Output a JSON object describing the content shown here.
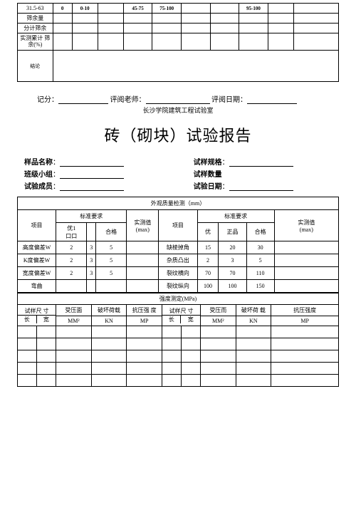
{
  "topTable": {
    "col_labels": [
      "31.5-63",
      "0",
      "0-10",
      "",
      "45-75",
      "75-100",
      "",
      "",
      "95-100",
      "",
      ""
    ],
    "row_labels": [
      "筛余量",
      "分计筛余",
      "实测累计 筛余(%)"
    ],
    "conclusion_label": "结论"
  },
  "signature": {
    "score_label": "记分：",
    "teacher_label": "评阅老师：",
    "date_label": "评阅日期：",
    "org": "长沙学院建筑工程试验室"
  },
  "title": "砖（砌块）试验报告",
  "info": {
    "sample_name_label": "样品名称",
    "spec_label": "试样规格",
    "class_label": "班级小组",
    "qty_label": "试样数量",
    "members_label": "试验成员",
    "date_label": "试验日期"
  },
  "quality": {
    "header": "外观质量检测（mm）",
    "cols": {
      "item": "项目",
      "std": "标准要求",
      "you1": "优1",
      "box": "口口",
      "hege": "合格",
      "measured": "实测值",
      "max": "(max)",
      "you": "优",
      "zhengpin": "正品"
    },
    "left_rows": [
      {
        "label": "高度偏差W",
        "v": [
          "2",
          "3",
          "5"
        ]
      },
      {
        "label": "K度偏差W",
        "v": [
          "2",
          "3",
          "5"
        ]
      },
      {
        "label": "宽度偏差W",
        "v": [
          "2",
          "3",
          "5"
        ]
      },
      {
        "label": "弯曲",
        "v": [
          "",
          "",
          ""
        ]
      }
    ],
    "right_rows": [
      {
        "label": "缺棱掉角",
        "v": [
          "15",
          "20",
          "30"
        ]
      },
      {
        "label": "杂质凸出",
        "v": [
          "2",
          "3",
          "5"
        ]
      },
      {
        "label": "裂纹横向",
        "v": [
          "70",
          "70",
          "110"
        ]
      },
      {
        "label": "裂纹纵向",
        "v": [
          "100",
          "100",
          "150"
        ]
      }
    ]
  },
  "strength": {
    "header": "强度测定(MPa)",
    "cols": {
      "size": "试样尺 寸",
      "l": "长",
      "w": "宽",
      "area": "受压面",
      "area_unit": "MM²",
      "load": "破坏荷载",
      "load_unit": "KN",
      "strength_l": "抗压强 度",
      "strength_r": "抗压强度",
      "mp": "MP",
      "area2": "受压而",
      "load2": "破坏荷 载"
    },
    "data_rows": 5
  }
}
